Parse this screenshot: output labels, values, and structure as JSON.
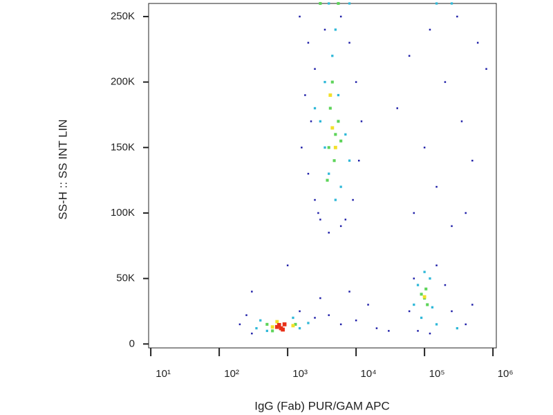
{
  "chart_data": {
    "type": "scatter",
    "x_label": "IgG (Fab) PUR/GAM APC",
    "y_label": "SS-H :: SS INT LIN",
    "x_scale": "log",
    "xlim": [
      9.3,
      1120000
    ],
    "ylim": [
      -3000,
      260000
    ],
    "xticks": [
      {
        "value": 10,
        "label": "10¹"
      },
      {
        "value": 100,
        "label": "10²"
      },
      {
        "value": 1000,
        "label": "10³"
      },
      {
        "value": 10000,
        "label": "10⁴"
      },
      {
        "value": 100000,
        "label": "10⁵"
      },
      {
        "value": 1000000,
        "label": "10⁶"
      }
    ],
    "yticks": [
      0,
      {
        "value": 50000,
        "label": "50K"
      },
      {
        "value": 100000,
        "label": "100K"
      },
      {
        "value": 150000,
        "label": "150K"
      },
      {
        "value": 200000,
        "label": "200K"
      },
      {
        "value": 250000,
        "label": "250K"
      }
    ],
    "series": [
      {
        "color": "#1f1fa8",
        "x": [
          1500,
          2000,
          2500,
          1800,
          2200,
          1600,
          2000,
          2500,
          3000,
          4000,
          6000,
          9000,
          11000,
          12000,
          10000,
          8000,
          6000,
          3500,
          2800,
          7000,
          200,
          250,
          300,
          1500,
          2500,
          4000,
          6000,
          10000,
          20000,
          3000,
          8000,
          1000,
          300,
          15000,
          30000,
          60000,
          70000,
          150000,
          200000,
          250000,
          400000,
          500000,
          80000,
          120000,
          40000,
          60000,
          100000,
          150000,
          200000,
          300000,
          350000,
          500000,
          250000,
          70000,
          120000,
          600000,
          400000,
          800000
        ],
        "values": [
          250000,
          230000,
          210000,
          190000,
          170000,
          150000,
          130000,
          110000,
          95000,
          85000,
          90000,
          110000,
          140000,
          170000,
          200000,
          230000,
          250000,
          240000,
          100000,
          95000,
          15000,
          22000,
          8000,
          25000,
          20000,
          22000,
          15000,
          18000,
          12000,
          35000,
          40000,
          60000,
          40000,
          30000,
          10000,
          25000,
          50000,
          60000,
          45000,
          25000,
          15000,
          30000,
          10000,
          8000,
          180000,
          220000,
          150000,
          120000,
          200000,
          250000,
          170000,
          140000,
          90000,
          100000,
          240000,
          230000,
          100000,
          210000
        ]
      },
      {
        "color": "#2fb8d8",
        "x": [
          3500,
          4500,
          5500,
          3000,
          7000,
          4000,
          6000,
          5000,
          3500,
          8000,
          2500,
          5000,
          400,
          500,
          1500,
          2000,
          350,
          1200,
          80000,
          120000,
          90000,
          130000,
          100000,
          70000,
          150000,
          300000,
          4000,
          8000,
          150000,
          250000
        ],
        "values": [
          200000,
          220000,
          190000,
          170000,
          160000,
          130000,
          120000,
          110000,
          150000,
          140000,
          180000,
          240000,
          18000,
          10000,
          12000,
          16000,
          12000,
          20000,
          45000,
          50000,
          20000,
          28000,
          55000,
          30000,
          15000,
          12000,
          260000,
          260000,
          260000,
          260000
        ]
      },
      {
        "color": "#5ed45a",
        "x": [
          4200,
          5000,
          4000,
          4800,
          5500,
          4500,
          3800,
          6000,
          100000,
          110000,
          90000,
          105000,
          500,
          1300,
          600,
          3000,
          5500
        ],
        "values": [
          180000,
          160000,
          150000,
          140000,
          170000,
          200000,
          125000,
          155000,
          35000,
          30000,
          38000,
          42000,
          15000,
          15000,
          10000,
          260000,
          260000
        ]
      },
      {
        "color": "#f2e02a",
        "x": [
          4500,
          5000,
          4200,
          600,
          1200,
          700,
          100000
        ],
        "values": [
          165000,
          150000,
          190000,
          13000,
          14000,
          17000,
          36000
        ]
      },
      {
        "color": "#e83018",
        "x": [
          700,
          800,
          900,
          750,
          850
        ],
        "values": [
          13000,
          12000,
          15000,
          14500,
          11000
        ]
      }
    ]
  }
}
